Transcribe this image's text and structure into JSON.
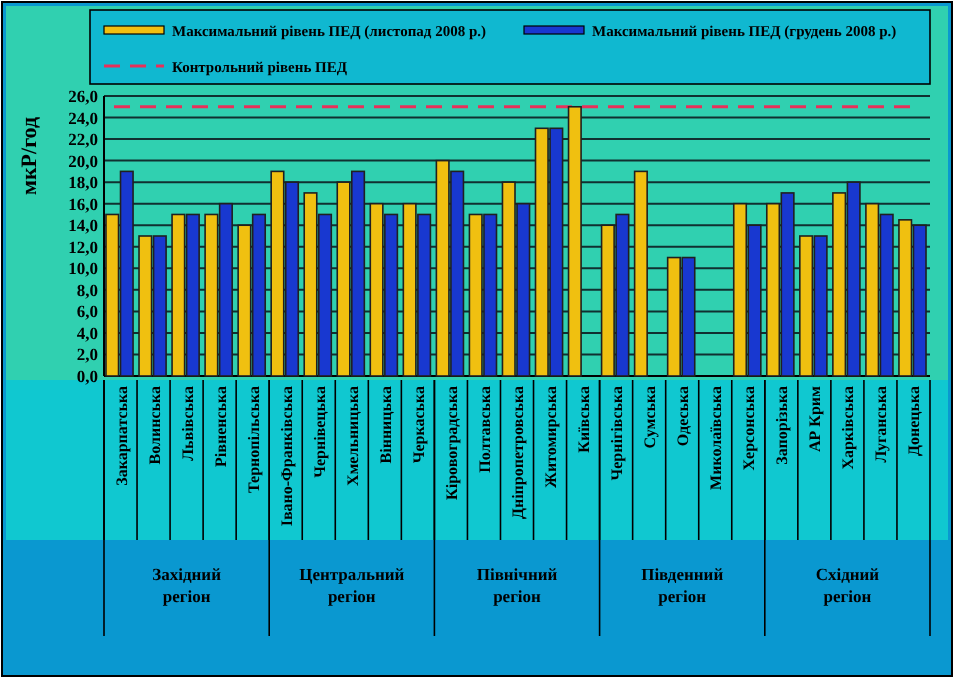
{
  "chart_data": {
    "type": "bar",
    "ylabel": "мкР/год",
    "legend": "top",
    "grid": "y",
    "categories": [
      "Закарпатська",
      "Волинська",
      "Львівська",
      "Рівненська",
      "Тернопільська",
      "Івано-Франківська",
      "Чернівецька",
      "Хмельницька",
      "Вінницька",
      "Черкаська",
      "Кіровоградська",
      "Полтавська",
      "Дніпропетровська",
      "Житомирська",
      "Київська",
      "Чернігівська",
      "Сумська",
      "Одеська",
      "Миколаївська",
      "Херсонська",
      "Запорізька",
      "АР Крим",
      "Харківська",
      "Луганська",
      "Донецька"
    ],
    "series": [
      {
        "name": "Максимальний рівень ПЕД (листопад 2008 р.)",
        "color": "#f0c010",
        "values": [
          15,
          13,
          15,
          15,
          14,
          19,
          17,
          18,
          16,
          16,
          20,
          15,
          18,
          23,
          25,
          14,
          19,
          11,
          null,
          16,
          16,
          13,
          17,
          16,
          14.5
        ]
      },
      {
        "name": "Максимальний рівень ПЕД (грудень 2008 р.)",
        "color": "#1838d0",
        "values": [
          19,
          13,
          15,
          16,
          15,
          18,
          15,
          19,
          15,
          15,
          19,
          15,
          16,
          23,
          null,
          15,
          null,
          11,
          null,
          14,
          17,
          13,
          18,
          15,
          14
        ]
      }
    ],
    "ylim": [
      0,
      26
    ],
    "yticks": [
      {
        "value": 0,
        "label": "0,0"
      },
      {
        "value": 2,
        "label": "2,0"
      },
      {
        "value": 4,
        "label": "4,0"
      },
      {
        "value": 6,
        "label": "6,0"
      },
      {
        "value": 8,
        "label": "8,0"
      },
      {
        "value": 10,
        "label": "10,0"
      },
      {
        "value": 12,
        "label": "12,0"
      },
      {
        "value": 14,
        "label": "14,0"
      },
      {
        "value": 16,
        "label": "16,0"
      },
      {
        "value": 18,
        "label": "18,0"
      },
      {
        "value": 20,
        "label": "20,0"
      },
      {
        "value": 22,
        "label": "22,0"
      },
      {
        "value": 24,
        "label": "24,0"
      },
      {
        "value": 26,
        "label": "26,0"
      }
    ],
    "ref_lines": [
      {
        "axis": "y",
        "value": 25,
        "label": "Контрольний рівень ПЕД",
        "color": "#e8305a",
        "line_style": "dashed"
      }
    ],
    "annotations": [
      "Західний регіон",
      "Центральний регіон",
      "Північний регіон",
      "Південний регіон",
      "Східний регіон"
    ]
  }
}
